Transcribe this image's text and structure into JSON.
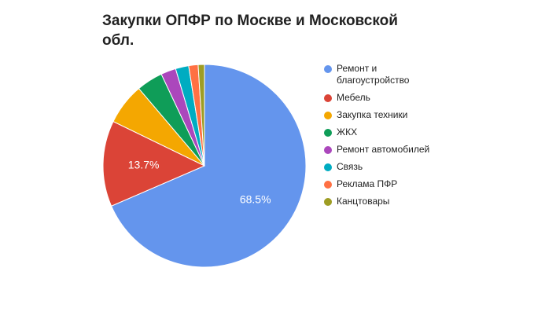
{
  "chart_data": {
    "type": "pie",
    "title": "Закупки ОПФР по Москве и Московской обл.",
    "legend_position": "right",
    "slices": [
      {
        "label": "Ремонт и благоустройство",
        "value": 68.5,
        "display": "68.5%",
        "color": "#6495ED"
      },
      {
        "label": "Мебель",
        "value": 13.7,
        "display": "13.7%",
        "color": "#DB4437"
      },
      {
        "label": "Закупка техники",
        "value": 6.6,
        "display": "",
        "color": "#F4A701"
      },
      {
        "label": "ЖКХ",
        "value": 4.2,
        "display": "",
        "color": "#0F9D58"
      },
      {
        "label": "Ремонт автомобилей",
        "value": 2.4,
        "display": "",
        "color": "#AB47BC"
      },
      {
        "label": "Связь",
        "value": 2.1,
        "display": "",
        "color": "#00ACC1"
      },
      {
        "label": "Реклама ПФР",
        "value": 1.5,
        "display": "",
        "color": "#FF7043"
      },
      {
        "label": "Канцтовары",
        "value": 1.0,
        "display": "",
        "color": "#9E9D24"
      }
    ]
  }
}
